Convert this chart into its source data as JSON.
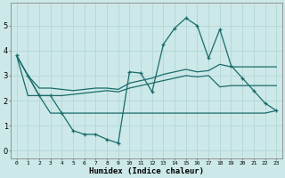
{
  "xlabel": "Humidex (Indice chaleur)",
  "x_ticks": [
    0,
    1,
    2,
    3,
    4,
    5,
    6,
    7,
    8,
    9,
    10,
    11,
    12,
    13,
    14,
    15,
    16,
    17,
    18,
    19,
    20,
    21,
    22,
    23
  ],
  "ylim": [
    -0.3,
    5.9
  ],
  "xlim": [
    -0.5,
    23.5
  ],
  "bg_color": "#cce8e8",
  "grid_color": "#b8d8d8",
  "line_color": "#1a6b6b",
  "series_main": [
    3.8,
    3.0,
    2.2,
    2.2,
    1.5,
    0.8,
    0.65,
    0.65,
    0.45,
    0.3,
    3.15,
    3.1,
    2.35,
    4.25,
    4.9,
    5.3,
    5.0,
    3.7,
    4.85,
    3.4,
    2.9,
    2.4,
    1.9,
    1.6
  ],
  "series_upper": [
    3.8,
    3.0,
    2.5,
    2.5,
    2.45,
    2.4,
    2.45,
    2.5,
    2.5,
    2.45,
    2.7,
    2.8,
    2.9,
    3.05,
    3.15,
    3.25,
    3.15,
    3.2,
    3.45,
    3.35,
    3.35,
    3.35,
    3.35,
    3.35
  ],
  "series_lower": [
    3.8,
    2.2,
    2.2,
    2.2,
    2.2,
    2.25,
    2.3,
    2.35,
    2.4,
    2.35,
    2.5,
    2.6,
    2.7,
    2.8,
    2.9,
    3.0,
    2.95,
    3.0,
    2.55,
    2.6,
    2.6,
    2.6,
    2.6,
    2.6
  ],
  "series_flat": [
    3.8,
    3.0,
    2.2,
    1.5,
    1.5,
    1.5,
    1.5,
    1.5,
    1.5,
    1.5,
    1.5,
    1.5,
    1.5,
    1.5,
    1.5,
    1.5,
    1.5,
    1.5,
    1.5,
    1.5,
    1.5,
    1.5,
    1.5,
    1.6
  ]
}
